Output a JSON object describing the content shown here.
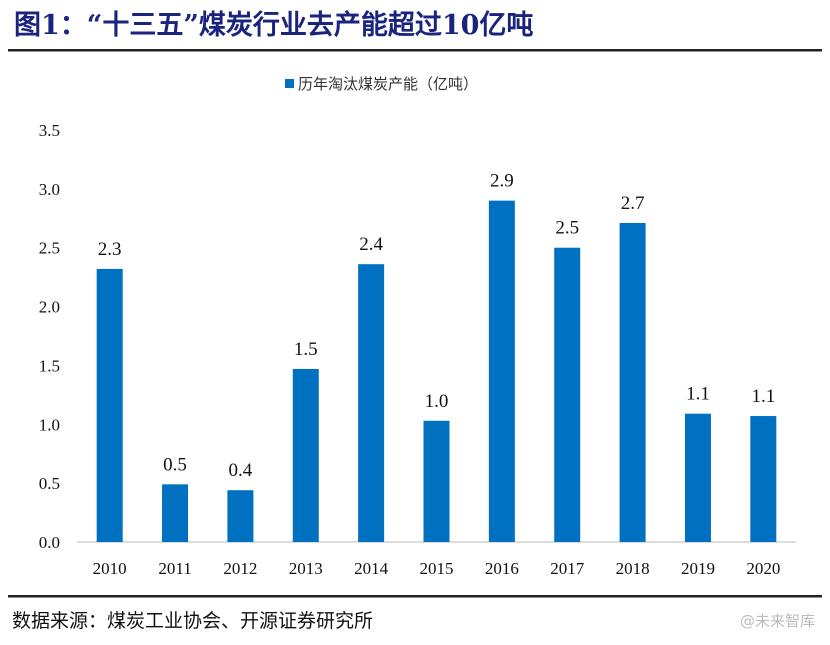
{
  "header": {
    "title": "图1：“十三五”煤炭行业去产能超过10亿吨"
  },
  "footer": {
    "source": "数据来源：煤炭工业协会、开源证券研究所",
    "watermark": "@未来智库"
  },
  "chart_data": {
    "type": "bar",
    "title": "图1：“十三五”煤炭行业去产能超过10亿吨",
    "categories": [
      "2010",
      "2011",
      "2012",
      "2013",
      "2014",
      "2015",
      "2016",
      "2017",
      "2018",
      "2019",
      "2020"
    ],
    "series": [
      {
        "name": "历年淘汰煤炭产能（亿吨）",
        "values": [
          2.32,
          0.49,
          0.44,
          1.47,
          2.36,
          1.03,
          2.9,
          2.5,
          2.71,
          1.09,
          1.07
        ],
        "labels": [
          "2.3",
          "0.5",
          "0.4",
          "1.5",
          "2.4",
          "1.0",
          "2.9",
          "2.5",
          "2.7",
          "1.1",
          "1.1"
        ]
      }
    ],
    "yticks": [
      "0.0",
      "0.5",
      "1.0",
      "1.5",
      "2.0",
      "2.5",
      "3.0",
      "3.5"
    ],
    "ylim": [
      0,
      3.5
    ],
    "xlabel": "",
    "ylabel": "",
    "grid": false,
    "legend": "top-center",
    "color": "#0070c0"
  }
}
